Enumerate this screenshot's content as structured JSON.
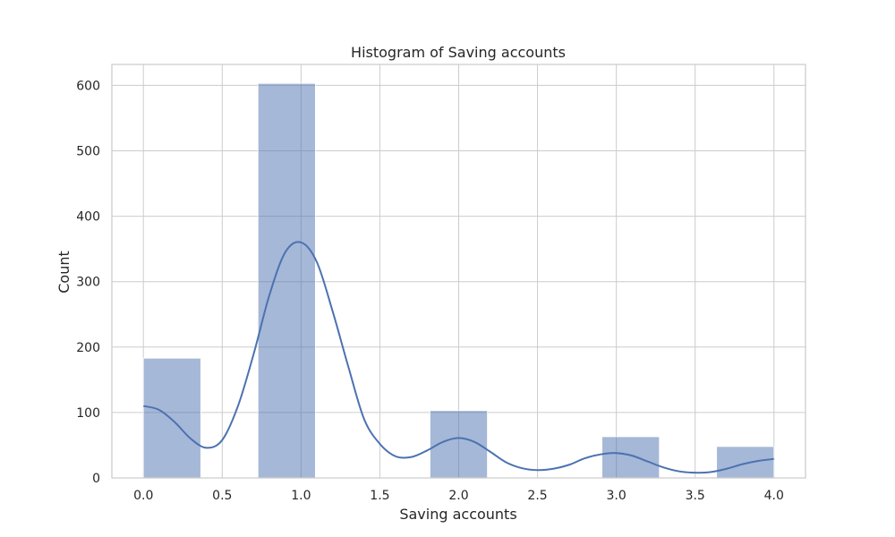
{
  "chart_data": {
    "type": "bar",
    "title": "Histogram of Saving accounts",
    "xlabel": "Saving accounts",
    "ylabel": "Count",
    "xlim": [
      -0.2,
      4.2
    ],
    "ylim": [
      0,
      632
    ],
    "xticks": [
      "0.0",
      "0.5",
      "1.0",
      "1.5",
      "2.0",
      "2.5",
      "3.0",
      "3.5",
      "4.0"
    ],
    "yticks": [
      "0",
      "100",
      "200",
      "300",
      "400",
      "500",
      "600"
    ],
    "grid": true,
    "bins": [
      {
        "x0": 0.0,
        "x1": 0.364,
        "count": 183
      },
      {
        "x0": 0.364,
        "x1": 0.727,
        "count": 0
      },
      {
        "x0": 0.727,
        "x1": 1.091,
        "count": 603
      },
      {
        "x0": 1.091,
        "x1": 1.455,
        "count": 0
      },
      {
        "x0": 1.455,
        "x1": 1.818,
        "count": 0
      },
      {
        "x0": 1.818,
        "x1": 2.182,
        "count": 103
      },
      {
        "x0": 2.182,
        "x1": 2.545,
        "count": 0
      },
      {
        "x0": 2.545,
        "x1": 2.909,
        "count": 0
      },
      {
        "x0": 2.909,
        "x1": 3.273,
        "count": 63
      },
      {
        "x0": 3.273,
        "x1": 3.636,
        "count": 0
      },
      {
        "x0": 3.636,
        "x1": 4.0,
        "count": 48
      }
    ],
    "kde": {
      "x": [
        0.0,
        0.1,
        0.2,
        0.3,
        0.4,
        0.5,
        0.6,
        0.7,
        0.8,
        0.9,
        1.0,
        1.1,
        1.2,
        1.3,
        1.4,
        1.5,
        1.6,
        1.7,
        1.8,
        1.9,
        2.0,
        2.1,
        2.2,
        2.3,
        2.4,
        2.5,
        2.6,
        2.7,
        2.8,
        2.9,
        3.0,
        3.1,
        3.2,
        3.3,
        3.4,
        3.5,
        3.6,
        3.7,
        3.8,
        3.9,
        4.0
      ],
      "y": [
        110,
        104,
        85,
        60,
        46,
        58,
        110,
        190,
        280,
        345,
        360,
        330,
        255,
        170,
        90,
        52,
        33,
        32,
        42,
        55,
        61,
        55,
        40,
        24,
        15,
        12,
        14,
        20,
        30,
        36,
        38,
        34,
        25,
        16,
        10,
        8,
        9,
        14,
        21,
        26,
        29
      ]
    },
    "colors": {
      "bar": "#4c72b0",
      "kde": "#4c72b0",
      "grid": "#cccccc"
    }
  }
}
